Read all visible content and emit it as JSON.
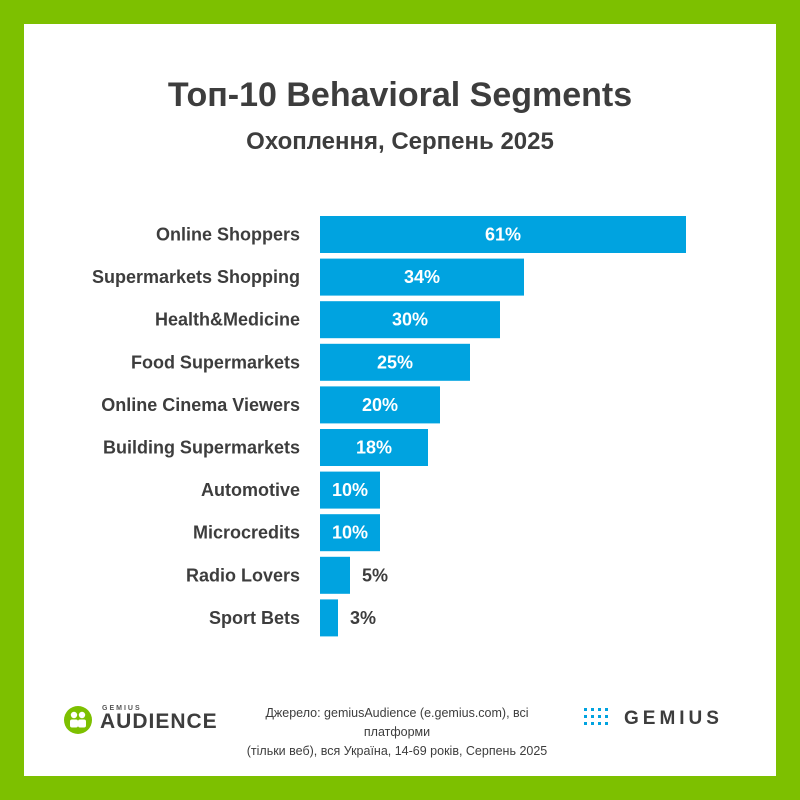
{
  "colors": {
    "background_border": "#7dc000",
    "bar": "#00a3e0",
    "text": "#3d3d3d",
    "bar_label": "#ffffff"
  },
  "chart_data": {
    "type": "bar",
    "orientation": "horizontal",
    "title": "Топ-10 Behavioral Segments",
    "subtitle": "Охоплення, Серпень 2025",
    "categories": [
      "Online Shoppers",
      "Supermarkets Shopping",
      "Health&Medicine",
      "Food Supermarkets",
      "Online Cinema Viewers",
      "Building Supermarkets",
      "Automotive",
      "Microcredits",
      "Radio Lovers",
      "Sport Bets"
    ],
    "values": [
      61,
      34,
      30,
      25,
      20,
      18,
      10,
      10,
      5,
      3
    ],
    "value_labels": [
      "61%",
      "34%",
      "30%",
      "25%",
      "20%",
      "18%",
      "10%",
      "10%",
      "5%",
      "3%"
    ],
    "unit": "%",
    "xlim": [
      0,
      61
    ],
    "grid": false,
    "legend": "none"
  },
  "footer": {
    "audience_logo_small": "GEMIUS",
    "audience_logo_word": "AUDIENCE",
    "source_line1": "Джерело: gemiusAudience (e.gemius.com), всі платформи",
    "source_line2": "(тільки веб), вся Україна, 14-69 років, Серпень 2025",
    "gemius_logo_word": "GEMIUS"
  }
}
